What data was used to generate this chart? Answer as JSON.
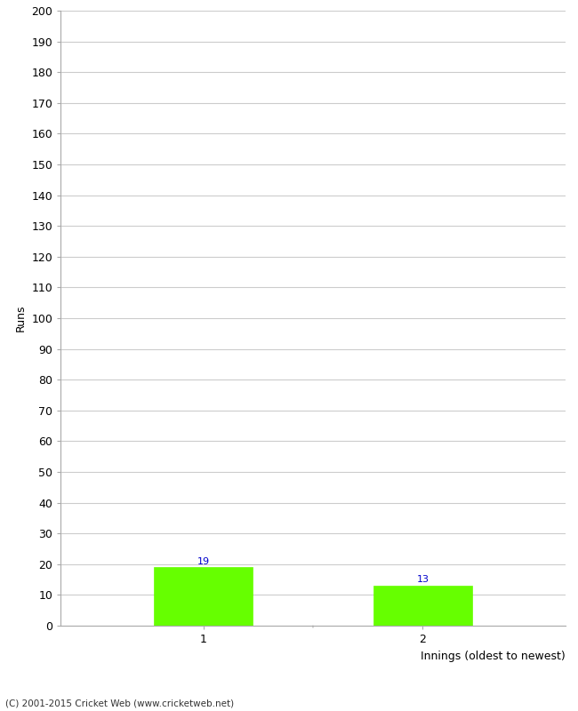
{
  "categories": [
    "1",
    "2"
  ],
  "values": [
    19,
    13
  ],
  "bar_color": "#66ff00",
  "bar_edge_color": "#66ff00",
  "ylabel": "Runs",
  "xlabel": "Innings (oldest to newest)",
  "ylim": [
    0,
    200
  ],
  "ytick_step": 10,
  "background_color": "#ffffff",
  "grid_color": "#cccccc",
  "label_color": "#0000cc",
  "footer": "(C) 2001-2015 Cricket Web (www.cricketweb.net)",
  "bar_width": 0.45,
  "figsize": [
    6.5,
    8.0
  ],
  "dpi": 100
}
